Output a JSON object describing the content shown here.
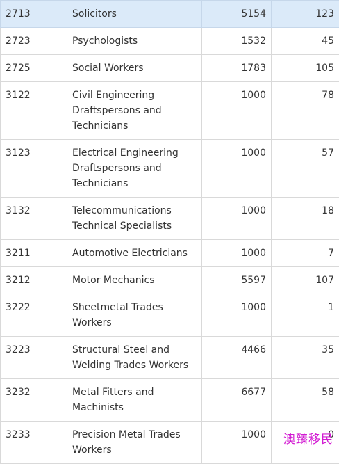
{
  "rows": [
    {
      "code": "2713",
      "occupation": "Solicitors",
      "col3": "5154",
      "col4": "123",
      "highlighted": true
    },
    {
      "code": "2723",
      "occupation": "Psychologists",
      "col3": "1532",
      "col4": "45"
    },
    {
      "code": "2725",
      "occupation": "Social Workers",
      "col3": "1783",
      "col4": "105"
    },
    {
      "code": "3122",
      "occupation": "Civil Engineering Draftspersons and Technicians",
      "col3": "1000",
      "col4": "78"
    },
    {
      "code": "3123",
      "occupation": "Electrical Engineering Draftspersons and Technicians",
      "col3": "1000",
      "col4": "57"
    },
    {
      "code": "3132",
      "occupation": "Telecommunications Technical Specialists",
      "col3": "1000",
      "col4": "18"
    },
    {
      "code": "3211",
      "occupation": "Automotive Electricians",
      "col3": "1000",
      "col4": "7"
    },
    {
      "code": "3212",
      "occupation": "Motor Mechanics",
      "col3": "5597",
      "col4": "107"
    },
    {
      "code": "3222",
      "occupation": "Sheetmetal Trades Workers",
      "col3": "1000",
      "col4": "1"
    },
    {
      "code": "3223",
      "occupation": "Structural Steel and Welding Trades Workers",
      "col3": "4466",
      "col4": "35"
    },
    {
      "code": "3232",
      "occupation": "Metal Fitters and Machinists",
      "col3": "6677",
      "col4": "58"
    },
    {
      "code": "3233",
      "occupation": "Precision Metal Trades Workers",
      "col3": "1000",
      "col4": "0"
    }
  ],
  "watermark": "澳臻移民",
  "colors": {
    "highlight_row": "#dbeaf9",
    "border": "#d9d9d9",
    "text": "#333333",
    "watermark": "#d21ad2"
  }
}
